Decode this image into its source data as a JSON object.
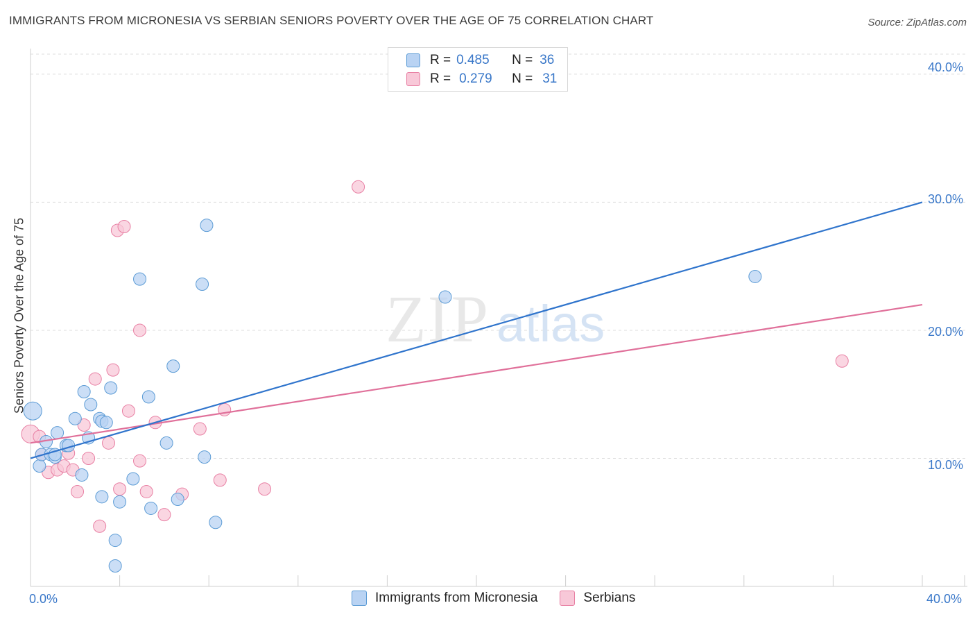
{
  "title": "IMMIGRANTS FROM MICRONESIA VS SERBIAN SENIORS POVERTY OVER THE AGE OF 75 CORRELATION CHART",
  "source": "Source: ZipAtlas.com",
  "watermark": {
    "zip": "ZIP",
    "atlas": "atlas"
  },
  "legend": {
    "rows": [
      {
        "r_label": "R =",
        "r_value": "0.485",
        "n_label": "N =",
        "n_value": "36"
      },
      {
        "r_label": "R =",
        "r_value": "0.279",
        "n_label": "N =",
        "n_value": "31"
      }
    ]
  },
  "bottom_legend": {
    "series1": "Immigrants from Micronesia",
    "series2": "Serbians"
  },
  "chart_data": {
    "type": "scatter",
    "title": "IMMIGRANTS FROM MICRONESIA VS SERBIAN SENIORS POVERTY OVER THE AGE OF 75 CORRELATION CHART",
    "xlabel": "",
    "ylabel": "Seniors Poverty Over the Age of 75",
    "xlim": [
      0,
      40
    ],
    "ylim": [
      0,
      42
    ],
    "x_tick_labels": [
      "0.0%",
      "40.0%"
    ],
    "y_tick_labels": [
      "10.0%",
      "20.0%",
      "30.0%",
      "40.0%"
    ],
    "y_ticks": [
      10,
      20,
      30,
      40
    ],
    "colors": {
      "series1": "#5b9bd5",
      "series1_fill": "#b9d3f3",
      "series1_line": "#2f74cc",
      "series2": "#e87fa3",
      "series2_fill": "#f8c8d8",
      "series2_line": "#e0709a"
    },
    "series": [
      {
        "name": "Immigrants from Micronesia",
        "trend": {
          "x": [
            0,
            40
          ],
          "y": [
            10.0,
            30.0
          ]
        },
        "points": [
          [
            0.1,
            13.7
          ],
          [
            0.4,
            9.4
          ],
          [
            0.5,
            10.3
          ],
          [
            0.7,
            11.3
          ],
          [
            0.9,
            10.3
          ],
          [
            1.1,
            10.1
          ],
          [
            1.2,
            12.0
          ],
          [
            1.6,
            11.0
          ],
          [
            1.7,
            11.0
          ],
          [
            2.0,
            13.1
          ],
          [
            2.3,
            8.7
          ],
          [
            2.4,
            15.2
          ],
          [
            2.6,
            11.6
          ],
          [
            2.7,
            14.2
          ],
          [
            3.1,
            13.1
          ],
          [
            3.2,
            12.9
          ],
          [
            3.6,
            15.5
          ],
          [
            3.2,
            7.0
          ],
          [
            3.8,
            3.6
          ],
          [
            4.0,
            6.6
          ],
          [
            3.8,
            1.6
          ],
          [
            4.6,
            8.4
          ],
          [
            4.9,
            24.0
          ],
          [
            5.3,
            14.8
          ],
          [
            5.4,
            6.1
          ],
          [
            6.1,
            11.2
          ],
          [
            6.4,
            17.2
          ],
          [
            6.6,
            6.8
          ],
          [
            7.7,
            23.6
          ],
          [
            7.8,
            10.1
          ],
          [
            7.9,
            28.2
          ],
          [
            8.3,
            5.0
          ],
          [
            18.6,
            22.6
          ],
          [
            32.5,
            24.2
          ],
          [
            3.4,
            12.8
          ],
          [
            1.1,
            10.3
          ]
        ]
      },
      {
        "name": "Serbians",
        "trend": {
          "x": [
            0,
            40
          ],
          "y": [
            11.2,
            22.0
          ]
        },
        "points": [
          [
            0.0,
            11.9
          ],
          [
            0.4,
            11.7
          ],
          [
            0.5,
            10.3
          ],
          [
            0.8,
            8.9
          ],
          [
            1.2,
            9.1
          ],
          [
            1.5,
            9.4
          ],
          [
            1.7,
            10.4
          ],
          [
            1.9,
            9.1
          ],
          [
            2.1,
            7.4
          ],
          [
            2.4,
            12.6
          ],
          [
            2.6,
            10.0
          ],
          [
            2.9,
            16.2
          ],
          [
            3.1,
            4.7
          ],
          [
            3.5,
            11.2
          ],
          [
            3.7,
            16.9
          ],
          [
            3.9,
            27.8
          ],
          [
            4.2,
            28.1
          ],
          [
            4.0,
            7.6
          ],
          [
            4.4,
            13.7
          ],
          [
            4.9,
            9.8
          ],
          [
            4.9,
            20.0
          ],
          [
            5.2,
            7.4
          ],
          [
            5.6,
            12.8
          ],
          [
            6.0,
            5.6
          ],
          [
            6.8,
            7.2
          ],
          [
            7.6,
            12.3
          ],
          [
            8.5,
            8.3
          ],
          [
            8.7,
            13.8
          ],
          [
            10.5,
            7.6
          ],
          [
            14.7,
            31.2
          ],
          [
            36.4,
            17.6
          ]
        ]
      }
    ]
  }
}
